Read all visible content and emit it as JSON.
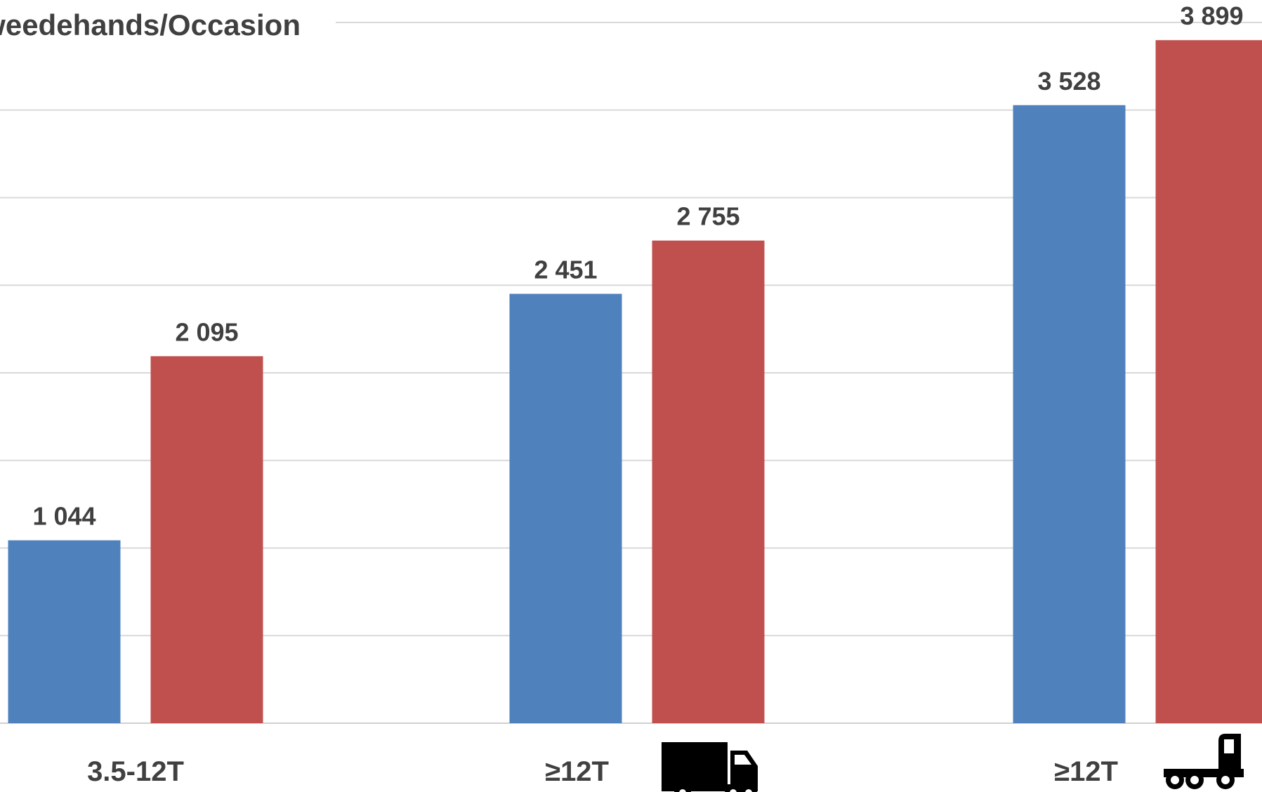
{
  "chart_data": {
    "type": "bar",
    "title": "Tweedehands/Occasion",
    "categories": [
      "3.5-12T",
      "≥12T",
      "≥12T"
    ],
    "category_icons": [
      "",
      "box-truck-icon",
      "tractor-unit-icon"
    ],
    "series": [
      {
        "values": [
          1044,
          2451,
          3528
        ],
        "color": "#4F81BD"
      },
      {
        "values": [
          2095,
          2755,
          3899
        ],
        "color": "#C0504D"
      }
    ],
    "data_labels": [
      [
        "1 044",
        "2 451",
        "3 528"
      ],
      [
        "2 095",
        "2 755",
        "3 899"
      ]
    ],
    "ylim": [
      0,
      4000
    ],
    "grid": true,
    "legend": "none"
  }
}
